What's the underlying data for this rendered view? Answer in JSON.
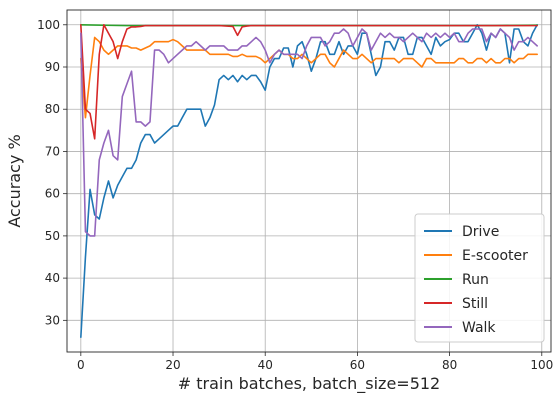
{
  "chart_data": {
    "type": "line",
    "xlabel": "# train batches, batch_size=512",
    "ylabel": "Accuracy %",
    "xlim": [
      -3,
      102
    ],
    "ylim": [
      22.5,
      103.5
    ],
    "xticks": [
      0,
      20,
      40,
      60,
      80,
      100
    ],
    "yticks": [
      30,
      40,
      50,
      60,
      70,
      80,
      90,
      100
    ],
    "grid": true,
    "legend_position": "lower right",
    "series": [
      {
        "name": "Drive",
        "color": "#1f77b4",
        "x": [
          0,
          1,
          2,
          3,
          4,
          5,
          6,
          7,
          8,
          9,
          10,
          11,
          12,
          13,
          14,
          15,
          16,
          17,
          18,
          19,
          20,
          21,
          22,
          23,
          24,
          25,
          26,
          27,
          28,
          29,
          30,
          31,
          32,
          33,
          34,
          35,
          36,
          37,
          38,
          39,
          40,
          41,
          42,
          43,
          44,
          45,
          46,
          47,
          48,
          49,
          50,
          51,
          52,
          53,
          54,
          55,
          56,
          57,
          58,
          59,
          60,
          61,
          62,
          63,
          64,
          65,
          66,
          67,
          68,
          69,
          70,
          71,
          72,
          73,
          74,
          75,
          76,
          77,
          78,
          79,
          80,
          81,
          82,
          83,
          84,
          85,
          86,
          87,
          88,
          89,
          90,
          91,
          92,
          93,
          94,
          95,
          96,
          97,
          98,
          99
        ],
        "y": [
          26,
          45,
          61,
          55,
          54,
          59,
          63,
          59,
          62,
          64,
          66,
          66,
          68,
          72,
          74,
          74,
          72,
          73,
          74,
          75,
          76,
          76,
          78,
          80,
          80,
          80,
          80,
          76,
          78,
          81,
          87,
          88,
          87,
          88,
          86.5,
          88,
          87,
          88,
          88,
          86.5,
          84.5,
          90,
          92,
          92,
          94.5,
          94.5,
          90,
          95,
          96,
          93,
          89,
          92,
          96,
          96,
          93,
          93,
          96,
          93,
          95,
          95,
          93,
          98,
          98,
          93,
          88,
          90,
          96,
          96,
          94,
          97,
          97,
          93,
          93,
          97,
          97,
          95,
          93,
          97,
          95,
          96,
          96.5,
          98,
          98,
          96,
          96,
          98,
          100,
          98,
          94,
          98,
          97,
          99,
          98,
          91,
          99,
          99,
          96,
          95,
          98,
          100
        ]
      },
      {
        "name": "E-scooter",
        "color": "#ff7f0e",
        "x": [
          0,
          1,
          2,
          3,
          4,
          5,
          6,
          7,
          8,
          9,
          10,
          11,
          12,
          13,
          14,
          15,
          16,
          17,
          18,
          19,
          20,
          21,
          22,
          23,
          24,
          25,
          26,
          27,
          28,
          29,
          30,
          31,
          32,
          33,
          34,
          35,
          36,
          37,
          38,
          39,
          40,
          41,
          42,
          43,
          44,
          45,
          46,
          47,
          48,
          49,
          50,
          51,
          52,
          53,
          54,
          55,
          56,
          57,
          58,
          59,
          60,
          61,
          62,
          63,
          64,
          65,
          66,
          67,
          68,
          69,
          70,
          71,
          72,
          73,
          74,
          75,
          76,
          77,
          78,
          79,
          80,
          81,
          82,
          83,
          84,
          85,
          86,
          87,
          88,
          89,
          90,
          91,
          92,
          93,
          94,
          95,
          96,
          97,
          98,
          99
        ],
        "y": [
          92,
          78,
          88,
          97,
          96,
          94,
          93,
          94,
          95,
          95,
          95,
          94.5,
          94.5,
          94,
          94.5,
          95,
          96,
          96,
          96,
          96,
          96.5,
          96,
          95,
          94,
          94,
          94,
          94,
          94,
          93,
          93,
          93,
          93,
          93,
          92.5,
          92.5,
          93,
          92.5,
          92.5,
          92.5,
          92,
          91,
          92,
          93,
          94,
          93,
          93,
          92,
          92,
          93,
          92,
          91,
          92,
          93,
          93,
          91,
          90,
          92,
          94,
          93,
          92,
          92,
          93,
          92,
          91,
          92,
          92,
          92,
          92,
          92,
          91,
          92,
          92,
          92,
          91,
          90,
          92,
          92,
          91,
          91,
          91,
          91,
          91,
          92,
          92,
          91,
          91,
          92,
          92,
          91,
          92,
          91,
          91,
          92,
          92,
          91,
          92,
          92,
          93,
          93,
          93
        ]
      },
      {
        "name": "Run",
        "color": "#2ca02c",
        "x": [
          0,
          10,
          20,
          30,
          40,
          50,
          60,
          70,
          80,
          90,
          99
        ],
        "y": [
          100,
          99.8,
          99.8,
          99.8,
          99.8,
          99.8,
          99.8,
          99.8,
          99.8,
          99.8,
          99.9
        ]
      },
      {
        "name": "Still",
        "color": "#d62728",
        "x": [
          0,
          1,
          2,
          3,
          4,
          5,
          6,
          7,
          8,
          9,
          10,
          11,
          12,
          13,
          14,
          15,
          16,
          17,
          18,
          19,
          20,
          25,
          30,
          33,
          34,
          35,
          36,
          37,
          40,
          45,
          50,
          55,
          60,
          65,
          70,
          75,
          80,
          85,
          90,
          95,
          99
        ],
        "y": [
          100,
          80,
          79,
          73,
          93,
          100,
          98,
          96,
          92,
          96,
          99,
          99.5,
          99.5,
          99.6,
          99.8,
          99.8,
          99.8,
          99.8,
          99.8,
          99.8,
          99.8,
          99.8,
          99.8,
          99.6,
          97.5,
          99.5,
          99.7,
          99.8,
          99.8,
          99.8,
          99.8,
          99.8,
          99.8,
          99.8,
          99.8,
          99.8,
          99.8,
          99.8,
          99.8,
          99.8,
          99.8
        ]
      },
      {
        "name": "Walk",
        "color": "#9467bd",
        "x": [
          0,
          1,
          2,
          3,
          4,
          5,
          6,
          7,
          8,
          9,
          10,
          11,
          12,
          13,
          14,
          15,
          16,
          17,
          18,
          19,
          20,
          21,
          22,
          23,
          24,
          25,
          26,
          27,
          28,
          29,
          30,
          31,
          32,
          33,
          34,
          35,
          36,
          37,
          38,
          39,
          40,
          41,
          42,
          43,
          44,
          45,
          46,
          47,
          48,
          49,
          50,
          51,
          52,
          53,
          54,
          55,
          56,
          57,
          58,
          59,
          60,
          61,
          62,
          63,
          64,
          65,
          66,
          67,
          68,
          69,
          70,
          71,
          72,
          73,
          74,
          75,
          76,
          77,
          78,
          79,
          80,
          81,
          82,
          83,
          84,
          85,
          86,
          87,
          88,
          89,
          90,
          91,
          92,
          93,
          94,
          95,
          96,
          97,
          98,
          99
        ],
        "y": [
          98,
          51,
          50,
          50,
          68,
          72,
          75,
          69,
          68,
          83,
          86,
          89,
          77,
          77,
          76,
          77,
          94,
          94,
          93,
          91,
          92,
          93,
          94,
          95,
          95,
          96,
          95,
          94,
          95,
          95,
          95,
          95,
          94,
          94,
          94,
          95,
          95,
          96,
          97,
          96,
          94,
          91,
          93,
          94,
          93,
          93,
          93,
          93,
          92,
          95,
          97,
          97,
          97,
          95,
          96,
          98,
          98,
          99,
          98,
          95,
          97,
          99,
          98,
          94,
          96,
          98,
          97,
          98,
          97,
          97,
          96,
          97,
          98,
          97,
          96,
          98,
          97,
          98,
          97,
          98,
          97,
          98,
          96,
          96,
          98,
          99,
          99,
          99,
          96,
          98,
          97,
          99,
          98,
          97,
          94,
          96,
          96,
          97,
          96,
          95
        ]
      }
    ]
  }
}
